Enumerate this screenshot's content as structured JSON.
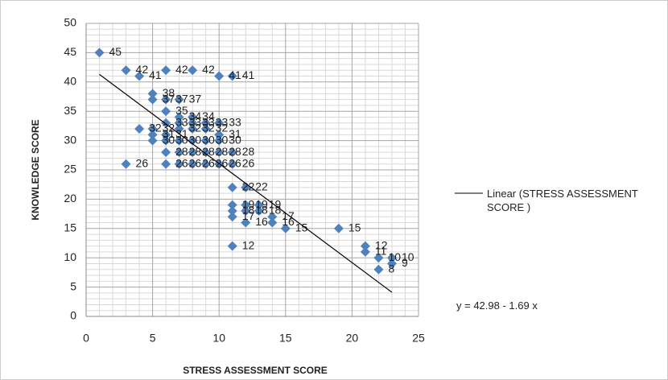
{
  "chart_data": {
    "type": "scatter",
    "x_label": "STRESS ASSESSMENT SCORE",
    "y_label": "KNOWLEDGE SCORE",
    "x": [
      1,
      3,
      4,
      6,
      8,
      10,
      11,
      5,
      5,
      6,
      7,
      6,
      7,
      8,
      4,
      5,
      6,
      7,
      8,
      9,
      10,
      5,
      6,
      7,
      8,
      9,
      10,
      5,
      6,
      7,
      8,
      9,
      10,
      6,
      7,
      8,
      9,
      10,
      11,
      3,
      6,
      7,
      8,
      9,
      10,
      11,
      11,
      12,
      11,
      12,
      13,
      11,
      12,
      13,
      14,
      11,
      12,
      14,
      15,
      19,
      11,
      21,
      21,
      22,
      23,
      23,
      22
    ],
    "values": [
      45,
      42,
      41,
      42,
      42,
      41,
      41,
      38,
      37,
      37,
      37,
      35,
      34,
      34,
      32,
      32,
      33,
      33,
      33,
      33,
      33,
      31,
      31,
      32,
      32,
      32,
      31,
      30,
      30,
      30,
      30,
      30,
      30,
      28,
      28,
      28,
      28,
      28,
      28,
      26,
      26,
      26,
      26,
      26,
      26,
      26,
      22,
      22,
      19,
      19,
      19,
      18,
      18,
      18,
      17,
      17,
      16,
      16,
      15,
      15,
      12,
      12,
      11,
      10,
      10,
      9,
      8
    ],
    "color": "#4f81bd",
    "xlim": [
      0,
      25
    ],
    "xticks": [
      0,
      5,
      10,
      15,
      20,
      25
    ],
    "ylim": [
      0,
      50
    ],
    "yticks": [
      0,
      5,
      10,
      15,
      20,
      25,
      30,
      35,
      40,
      45,
      50
    ],
    "grid": true,
    "trendline": {
      "intercept": 42.98,
      "slope": -1.69,
      "color": "#000000",
      "legend": "Linear (STRESS ASSESSMENT SCORE )",
      "equation": "y = 42.98 - 1.69 x"
    }
  }
}
